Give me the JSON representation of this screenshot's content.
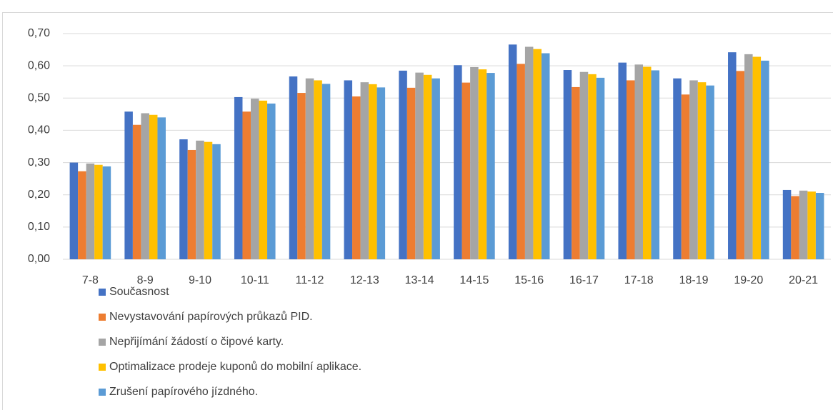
{
  "chart_data": {
    "type": "bar",
    "categories": [
      "7-8",
      "8-9",
      "9-10",
      "10-11",
      "11-12",
      "12-13",
      "13-14",
      "14-15",
      "15-16",
      "16-17",
      "17-18",
      "18-19",
      "19-20",
      "20-21"
    ],
    "series": [
      {
        "name": "Současnost",
        "color": "#4472c4",
        "values": [
          0.3,
          0.458,
          0.372,
          0.503,
          0.567,
          0.555,
          0.585,
          0.602,
          0.666,
          0.587,
          0.61,
          0.561,
          0.642,
          0.215
        ]
      },
      {
        "name": "Nevystavování papírových průkazů PID.",
        "color": "#ed7d31",
        "values": [
          0.273,
          0.417,
          0.339,
          0.458,
          0.516,
          0.505,
          0.532,
          0.548,
          0.606,
          0.534,
          0.555,
          0.511,
          0.584,
          0.196
        ]
      },
      {
        "name": "Nepřijímání žádostí o čipové karty.",
        "color": "#a5a5a5",
        "values": [
          0.297,
          0.453,
          0.368,
          0.498,
          0.561,
          0.549,
          0.579,
          0.596,
          0.659,
          0.581,
          0.604,
          0.555,
          0.636,
          0.213
        ]
      },
      {
        "name": "Optimalizace prodeje kuponů do mobilní aplikace.",
        "color": "#ffc000",
        "values": [
          0.293,
          0.448,
          0.364,
          0.492,
          0.555,
          0.543,
          0.572,
          0.589,
          0.652,
          0.574,
          0.597,
          0.549,
          0.628,
          0.21
        ]
      },
      {
        "name": "Zrušení papírového jízdného.",
        "color": "#5b9bd5",
        "values": [
          0.288,
          0.44,
          0.357,
          0.483,
          0.544,
          0.533,
          0.561,
          0.578,
          0.639,
          0.563,
          0.586,
          0.539,
          0.616,
          0.206
        ]
      }
    ],
    "ylim": [
      0,
      0.7
    ],
    "yticks": [
      {
        "value": 0,
        "label": "0,00"
      },
      {
        "value": 0.1,
        "label": "0,10"
      },
      {
        "value": 0.2,
        "label": "0,20"
      },
      {
        "value": 0.3,
        "label": "0,30"
      },
      {
        "value": 0.4,
        "label": "0,40"
      },
      {
        "value": 0.5,
        "label": "0,50"
      },
      {
        "value": 0.6,
        "label": "0,60"
      },
      {
        "value": 0.7,
        "label": "0,70"
      }
    ],
    "grid": true,
    "legend": "bottom-left"
  }
}
